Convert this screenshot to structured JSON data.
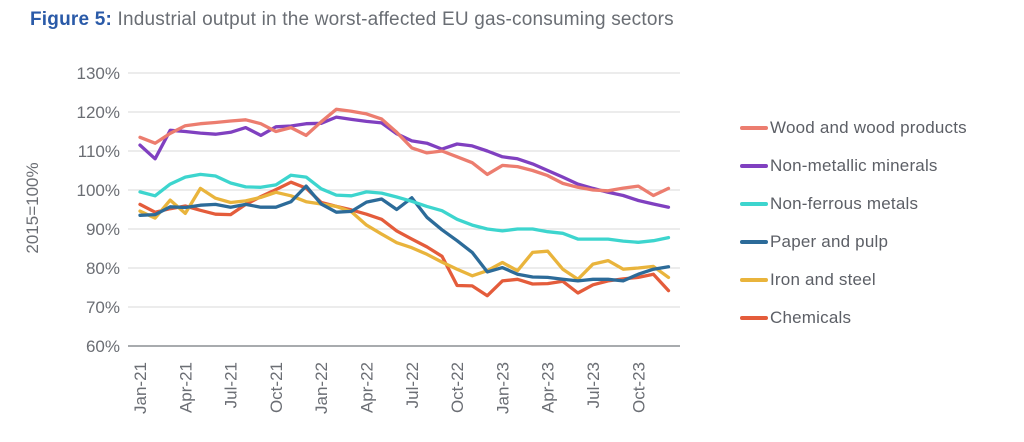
{
  "figure": {
    "label": "Figure 5:",
    "title": " Industrial output in the worst-affected EU gas-consuming sectors"
  },
  "colors": {
    "figure_label": "#2a5aa8",
    "figure_title_text": "#6a6e74",
    "axis_text": "#6b6e74",
    "gridline": "#d9d9d9",
    "axis_line": "#8c8f94",
    "legend_text": "#5c5f66",
    "background": "#ffffff"
  },
  "chart_data": {
    "type": "line",
    "title": "Industrial output in the worst-affected EU gas-consuming sectors",
    "xlabel": "",
    "ylabel": "2015=100%",
    "ylim": [
      60,
      130
    ],
    "grid": "horizontal",
    "legend_position": "right",
    "yticks": [
      {
        "value": 130,
        "label": "130%"
      },
      {
        "value": 120,
        "label": "120%"
      },
      {
        "value": 110,
        "label": "110%"
      },
      {
        "value": 100,
        "label": "100%"
      },
      {
        "value": 90,
        "label": "90%"
      },
      {
        "value": 80,
        "label": "80%"
      },
      {
        "value": 70,
        "label": "70%"
      },
      {
        "value": 60,
        "label": "60%"
      }
    ],
    "x_months": [
      "Jan-21",
      "Feb-21",
      "Mar-21",
      "Apr-21",
      "May-21",
      "Jun-21",
      "Jul-21",
      "Aug-21",
      "Sep-21",
      "Oct-21",
      "Nov-21",
      "Dec-21",
      "Jan-22",
      "Feb-22",
      "Mar-22",
      "Apr-22",
      "May-22",
      "Jun-22",
      "Jul-22",
      "Aug-22",
      "Sep-22",
      "Oct-22",
      "Nov-22",
      "Dec-22",
      "Jan-23",
      "Feb-23",
      "Mar-23",
      "Apr-23",
      "May-23",
      "Jun-23",
      "Jul-23",
      "Aug-23",
      "Sep-23",
      "Oct-23",
      "Nov-23",
      "Dec-23"
    ],
    "xticks": [
      {
        "index": 0,
        "label": "Jan-21"
      },
      {
        "index": 3,
        "label": "Apr-21"
      },
      {
        "index": 6,
        "label": "Jul-21"
      },
      {
        "index": 9,
        "label": "Oct-21"
      },
      {
        "index": 12,
        "label": "Jan-22"
      },
      {
        "index": 15,
        "label": "Apr-22"
      },
      {
        "index": 18,
        "label": "Jul-22"
      },
      {
        "index": 21,
        "label": "Oct-22"
      },
      {
        "index": 24,
        "label": "Jan-23"
      },
      {
        "index": 27,
        "label": "Apr-23"
      },
      {
        "index": 30,
        "label": "Jul-23"
      },
      {
        "index": 33,
        "label": "Oct-23"
      }
    ],
    "series": [
      {
        "name": "Wood and wood products",
        "color": "#ec7d6f",
        "values": [
          113.5,
          112.0,
          114.5,
          116.5,
          117.0,
          117.3,
          117.7,
          118.0,
          117.0,
          115.0,
          116.0,
          114.0,
          117.5,
          120.7,
          120.2,
          119.5,
          118.2,
          114.8,
          110.8,
          109.5,
          110.0,
          108.5,
          107.0,
          104.0,
          106.3,
          106.0,
          105.0,
          103.7,
          101.7,
          100.7,
          100.0,
          99.8,
          100.5,
          101.0,
          98.6,
          100.4
        ]
      },
      {
        "name": "Non-metallic minerals",
        "color": "#8040c0",
        "values": [
          111.5,
          108.0,
          115.3,
          115.0,
          114.6,
          114.3,
          114.8,
          116.0,
          114.0,
          116.2,
          116.4,
          117.0,
          117.1,
          118.7,
          118.1,
          117.6,
          117.2,
          114.4,
          112.6,
          112.0,
          110.5,
          111.8,
          111.3,
          110.0,
          108.5,
          108.0,
          106.7,
          105.0,
          103.3,
          101.5,
          100.4,
          99.4,
          98.6,
          97.3,
          96.4,
          95.6
        ]
      },
      {
        "name": "Non-ferrous metals",
        "color": "#3dd5ce",
        "values": [
          99.5,
          98.5,
          101.5,
          103.3,
          104.0,
          103.6,
          101.8,
          100.8,
          100.7,
          101.3,
          103.8,
          103.3,
          100.3,
          98.7,
          98.5,
          99.5,
          99.2,
          98.2,
          97.1,
          95.8,
          94.7,
          92.5,
          91.0,
          90.0,
          89.5,
          90.0,
          90.0,
          89.3,
          88.9,
          87.4,
          87.4,
          87.4,
          86.9,
          86.6,
          87.0,
          87.8
        ]
      },
      {
        "name": "Paper and pulp",
        "color": "#2c6b99",
        "values": [
          93.5,
          93.7,
          95.7,
          95.5,
          96.1,
          96.3,
          95.6,
          96.3,
          95.6,
          95.6,
          97.0,
          101.0,
          96.4,
          94.3,
          94.5,
          96.9,
          97.7,
          95.0,
          98.0,
          93.0,
          89.8,
          87.0,
          84.0,
          79.0,
          80.1,
          78.4,
          77.7,
          77.6,
          77.1,
          76.7,
          77.1,
          77.1,
          76.7,
          78.4,
          79.7,
          80.3
        ]
      },
      {
        "name": "Iron and steel",
        "color": "#e9b43c",
        "values": [
          94.6,
          92.8,
          97.4,
          94.0,
          100.4,
          97.9,
          96.8,
          97.2,
          98.1,
          99.4,
          98.5,
          97.0,
          96.4,
          95.8,
          94.4,
          91.0,
          88.7,
          86.5,
          85.2,
          83.5,
          81.5,
          79.7,
          78.0,
          79.3,
          81.4,
          79.3,
          84.0,
          84.3,
          79.7,
          77.1,
          81.0,
          81.9,
          79.7,
          80.0,
          80.4,
          77.6
        ]
      },
      {
        "name": "Chemicals",
        "color": "#e45c3b",
        "values": [
          96.3,
          94.3,
          95.2,
          95.9,
          94.8,
          93.8,
          93.7,
          96.3,
          98.3,
          100.1,
          102.0,
          100.5,
          96.8,
          95.8,
          94.9,
          93.8,
          92.5,
          89.5,
          87.4,
          85.4,
          83.0,
          75.5,
          75.4,
          72.9,
          76.7,
          77.1,
          75.9,
          76.0,
          76.6,
          73.6,
          75.7,
          76.7,
          77.2,
          77.6,
          78.4,
          74.2
        ]
      }
    ]
  }
}
